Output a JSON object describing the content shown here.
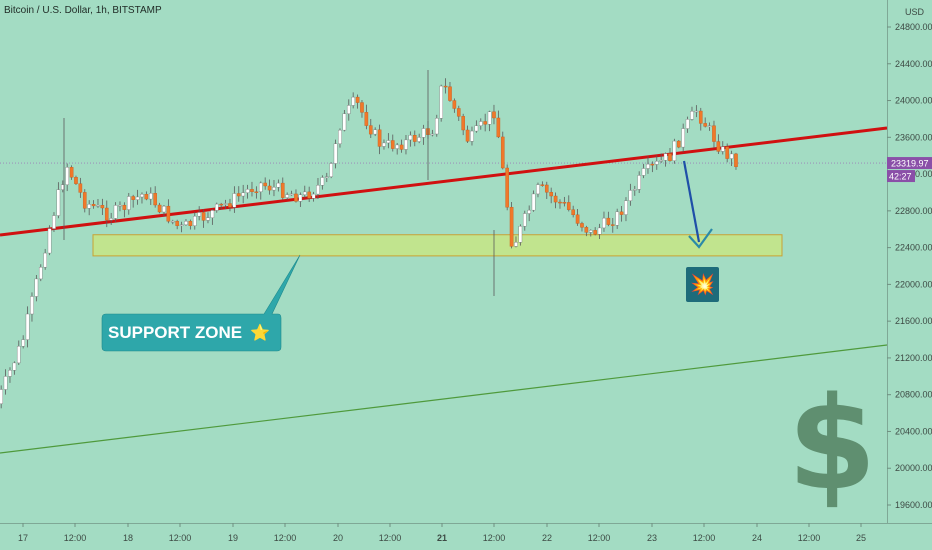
{
  "header": {
    "title": "Bitcoin / U.S. Dollar, 1h, BITSTAMP",
    "currency": "USD"
  },
  "chart_data": {
    "type": "candlestick",
    "title": "Bitcoin / U.S. Dollar, 1h, BITSTAMP",
    "xlabel": "",
    "ylabel": "USD",
    "y_ticks": [
      19600,
      20000,
      20400,
      20800,
      21200,
      21600,
      22000,
      22400,
      22800,
      23200,
      23600,
      24000,
      24400,
      24800
    ],
    "x_ticks": [
      "17",
      "12:00",
      "18",
      "12:00",
      "19",
      "12:00",
      "20",
      "12:00",
      "21",
      "12:00",
      "22",
      "12:00",
      "23",
      "12:00",
      "24",
      "12:00",
      "25"
    ],
    "ylim": [
      19300,
      25100
    ],
    "last_price_label": "23319.97",
    "countdown_label": "42:27",
    "last_price": 23319.97,
    "trend_line_resistance": {
      "from": {
        "x": "16 18:00",
        "y": 22610
      },
      "to": {
        "x": "25 12:00",
        "y": 23620
      },
      "color": "#d01010"
    },
    "trend_line_support": {
      "from": {
        "x": "16 18:00",
        "y": 20140
      },
      "to": {
        "x": "25 12:00",
        "y": 21330
      },
      "color": "#4f9a3c"
    },
    "support_zone": {
      "from_x": "17 12:00",
      "to_x": "24 12:00",
      "y_low": 22310,
      "y_high": 22540,
      "label": "SUPPORT ZONE ⭐"
    },
    "projection_arrow": {
      "color": "#1f4fa8"
    },
    "annotations": [
      "SUPPORT ZONE ⭐",
      "💥",
      "$"
    ],
    "colors": {
      "up": "#ffffff",
      "down": "#f0782a",
      "wick": "#5b5b5b",
      "background": "#a3dcc3"
    },
    "candles_close_path": [
      {
        "x": "16 18:00",
        "close": 20700
      },
      {
        "x": "17 00:00",
        "close": 21400
      },
      {
        "x": "17 06:00",
        "close": 22600
      },
      {
        "x": "17 10:00",
        "close": 23300
      },
      {
        "x": "17 14:00",
        "close": 22900
      },
      {
        "x": "17 20:00",
        "close": 22750
      },
      {
        "x": "18 04:00",
        "close": 23000
      },
      {
        "x": "18 12:00",
        "close": 22600
      },
      {
        "x": "18 20:00",
        "close": 22800
      },
      {
        "x": "19 06:00",
        "close": 23100
      },
      {
        "x": "19 16:00",
        "close": 22950
      },
      {
        "x": "19 22:00",
        "close": 23150
      },
      {
        "x": "20 00:00",
        "close": 23700
      },
      {
        "x": "20 04:00",
        "close": 24000
      },
      {
        "x": "20 10:00",
        "close": 23500
      },
      {
        "x": "20 16:00",
        "close": 23550
      },
      {
        "x": "20 22:00",
        "close": 23700
      },
      {
        "x": "21 00:00",
        "close": 24200
      },
      {
        "x": "21 06:00",
        "close": 23550
      },
      {
        "x": "21 12:00",
        "close": 23900
      },
      {
        "x": "21 16:00",
        "close": 22400
      },
      {
        "x": "21 22:00",
        "close": 23050
      },
      {
        "x": "22 04:00",
        "close": 22850
      },
      {
        "x": "22 10:00",
        "close": 22550
      },
      {
        "x": "22 16:00",
        "close": 22750
      },
      {
        "x": "22 22:00",
        "close": 23200
      },
      {
        "x": "23 04:00",
        "close": 23400
      },
      {
        "x": "23 10:00",
        "close": 23900
      },
      {
        "x": "23 16:00",
        "close": 23450
      },
      {
        "x": "23 20:00",
        "close": 23320
      }
    ]
  }
}
